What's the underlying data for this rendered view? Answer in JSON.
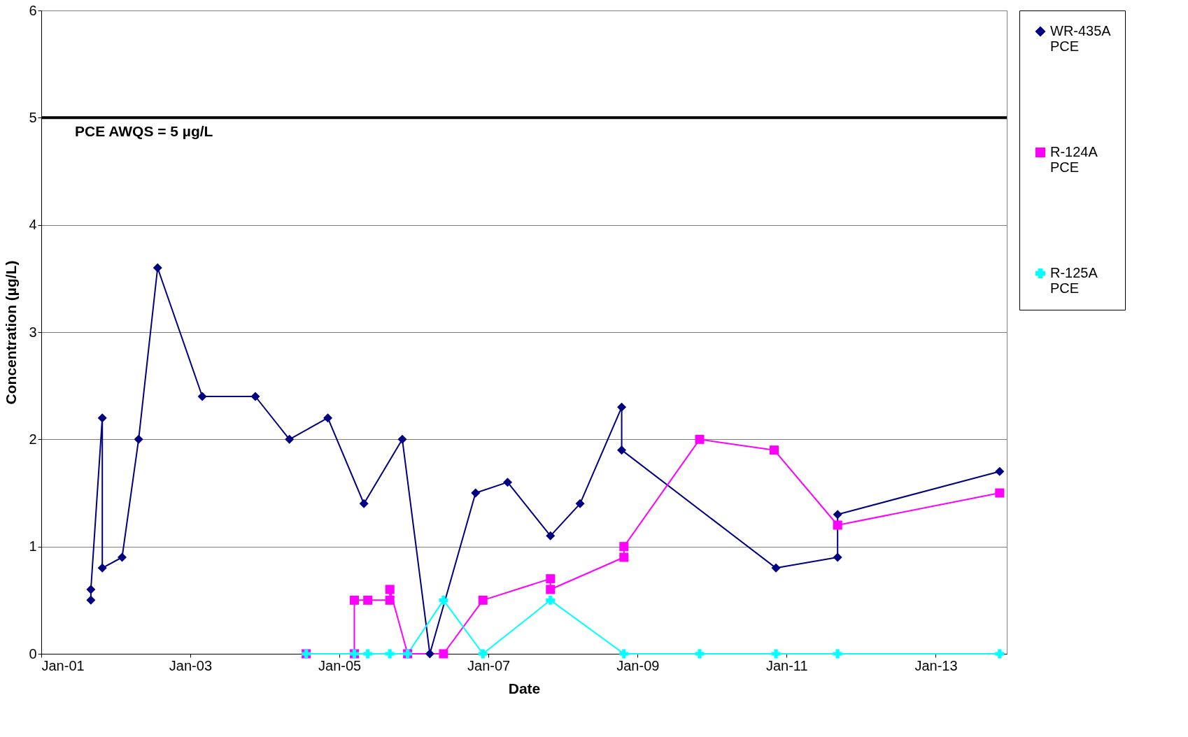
{
  "chart_data": {
    "type": "line",
    "xlabel": "Date",
    "ylabel": "Concentration (µg/L)",
    "xlim": [
      "2001-01-01",
      "2013-12-15"
    ],
    "xticks": [
      {
        "value": "2001-01-01",
        "label": "Jan-01"
      },
      {
        "value": "2003-01-01",
        "label": "Jan-03"
      },
      {
        "value": "2005-01-01",
        "label": "Jan-05"
      },
      {
        "value": "2007-01-01",
        "label": "Jan-07"
      },
      {
        "value": "2009-01-01",
        "label": "Jan-09"
      },
      {
        "value": "2011-01-01",
        "label": "Jan-11"
      },
      {
        "value": "2013-01-01",
        "label": "Jan-13"
      }
    ],
    "ylim": [
      0,
      6
    ],
    "yticks": [
      0,
      1,
      2,
      3,
      4,
      5,
      6
    ],
    "grid": "y",
    "legend": "right",
    "line_style": "solid",
    "ref_lines": [
      {
        "axis": "y",
        "value": 5,
        "label": "PCE AWQS = 5 µg/L",
        "color": "#000000"
      }
    ],
    "series": [
      {
        "name": "WR-435A PCE",
        "color": "#000080",
        "marker": "diamond",
        "x": [
          "2001-09-01",
          "2001-09-01",
          "2001-10-27",
          "2001-10-27",
          "2002-02-01",
          "2002-04-23",
          "2002-07-25",
          "2003-03-01",
          "2003-11-16",
          "2004-05-01",
          "2004-11-05",
          "2005-05-01",
          "2005-11-05",
          "2006-03-20",
          "2006-10-30",
          "2007-04-05",
          "2007-11-01",
          "2008-03-25",
          "2008-10-15",
          "2008-10-15",
          "2010-11-10",
          "2011-09-08",
          "2011-09-08",
          "2013-11-10"
        ],
        "values": [
          0.5,
          0.6,
          2.2,
          0.8,
          0.9,
          2.0,
          3.6,
          2.4,
          2.4,
          2.0,
          2.2,
          1.4,
          2.0,
          0,
          1.5,
          1.6,
          1.1,
          1.4,
          2.3,
          1.9,
          0.8,
          0.9,
          1.3,
          1.7
        ]
      },
      {
        "name": "R-124A PCE",
        "color": "#ff00ff",
        "marker": "square",
        "x": [
          "2004-07-22",
          "2005-03-15",
          "2005-03-15",
          "2005-05-20",
          "2005-09-05",
          "2005-09-05",
          "2005-12-01",
          "2006-05-26",
          "2006-12-05",
          "2007-11-01",
          "2007-11-01",
          "2008-10-26",
          "2008-10-26",
          "2009-11-01",
          "2010-11-01",
          "2011-09-08",
          "2013-11-10"
        ],
        "values": [
          0,
          0,
          0.5,
          0.5,
          0.5,
          0.6,
          0,
          0,
          0.5,
          0.7,
          0.6,
          0.9,
          1.0,
          2.0,
          1.9,
          1.2,
          1.5
        ]
      },
      {
        "name": "R-125A PCE",
        "color": "#00ffff",
        "marker": "cross",
        "x": [
          "2004-07-22",
          "2005-03-15",
          "2005-05-20",
          "2005-09-05",
          "2005-12-01",
          "2006-05-26",
          "2006-12-05",
          "2007-11-01",
          "2008-10-26",
          "2009-11-01",
          "2010-11-10",
          "2011-09-08",
          "2013-11-10"
        ],
        "values": [
          0,
          0,
          0,
          0,
          0,
          0.5,
          0,
          0.5,
          0,
          0,
          0,
          0,
          0
        ]
      }
    ]
  }
}
